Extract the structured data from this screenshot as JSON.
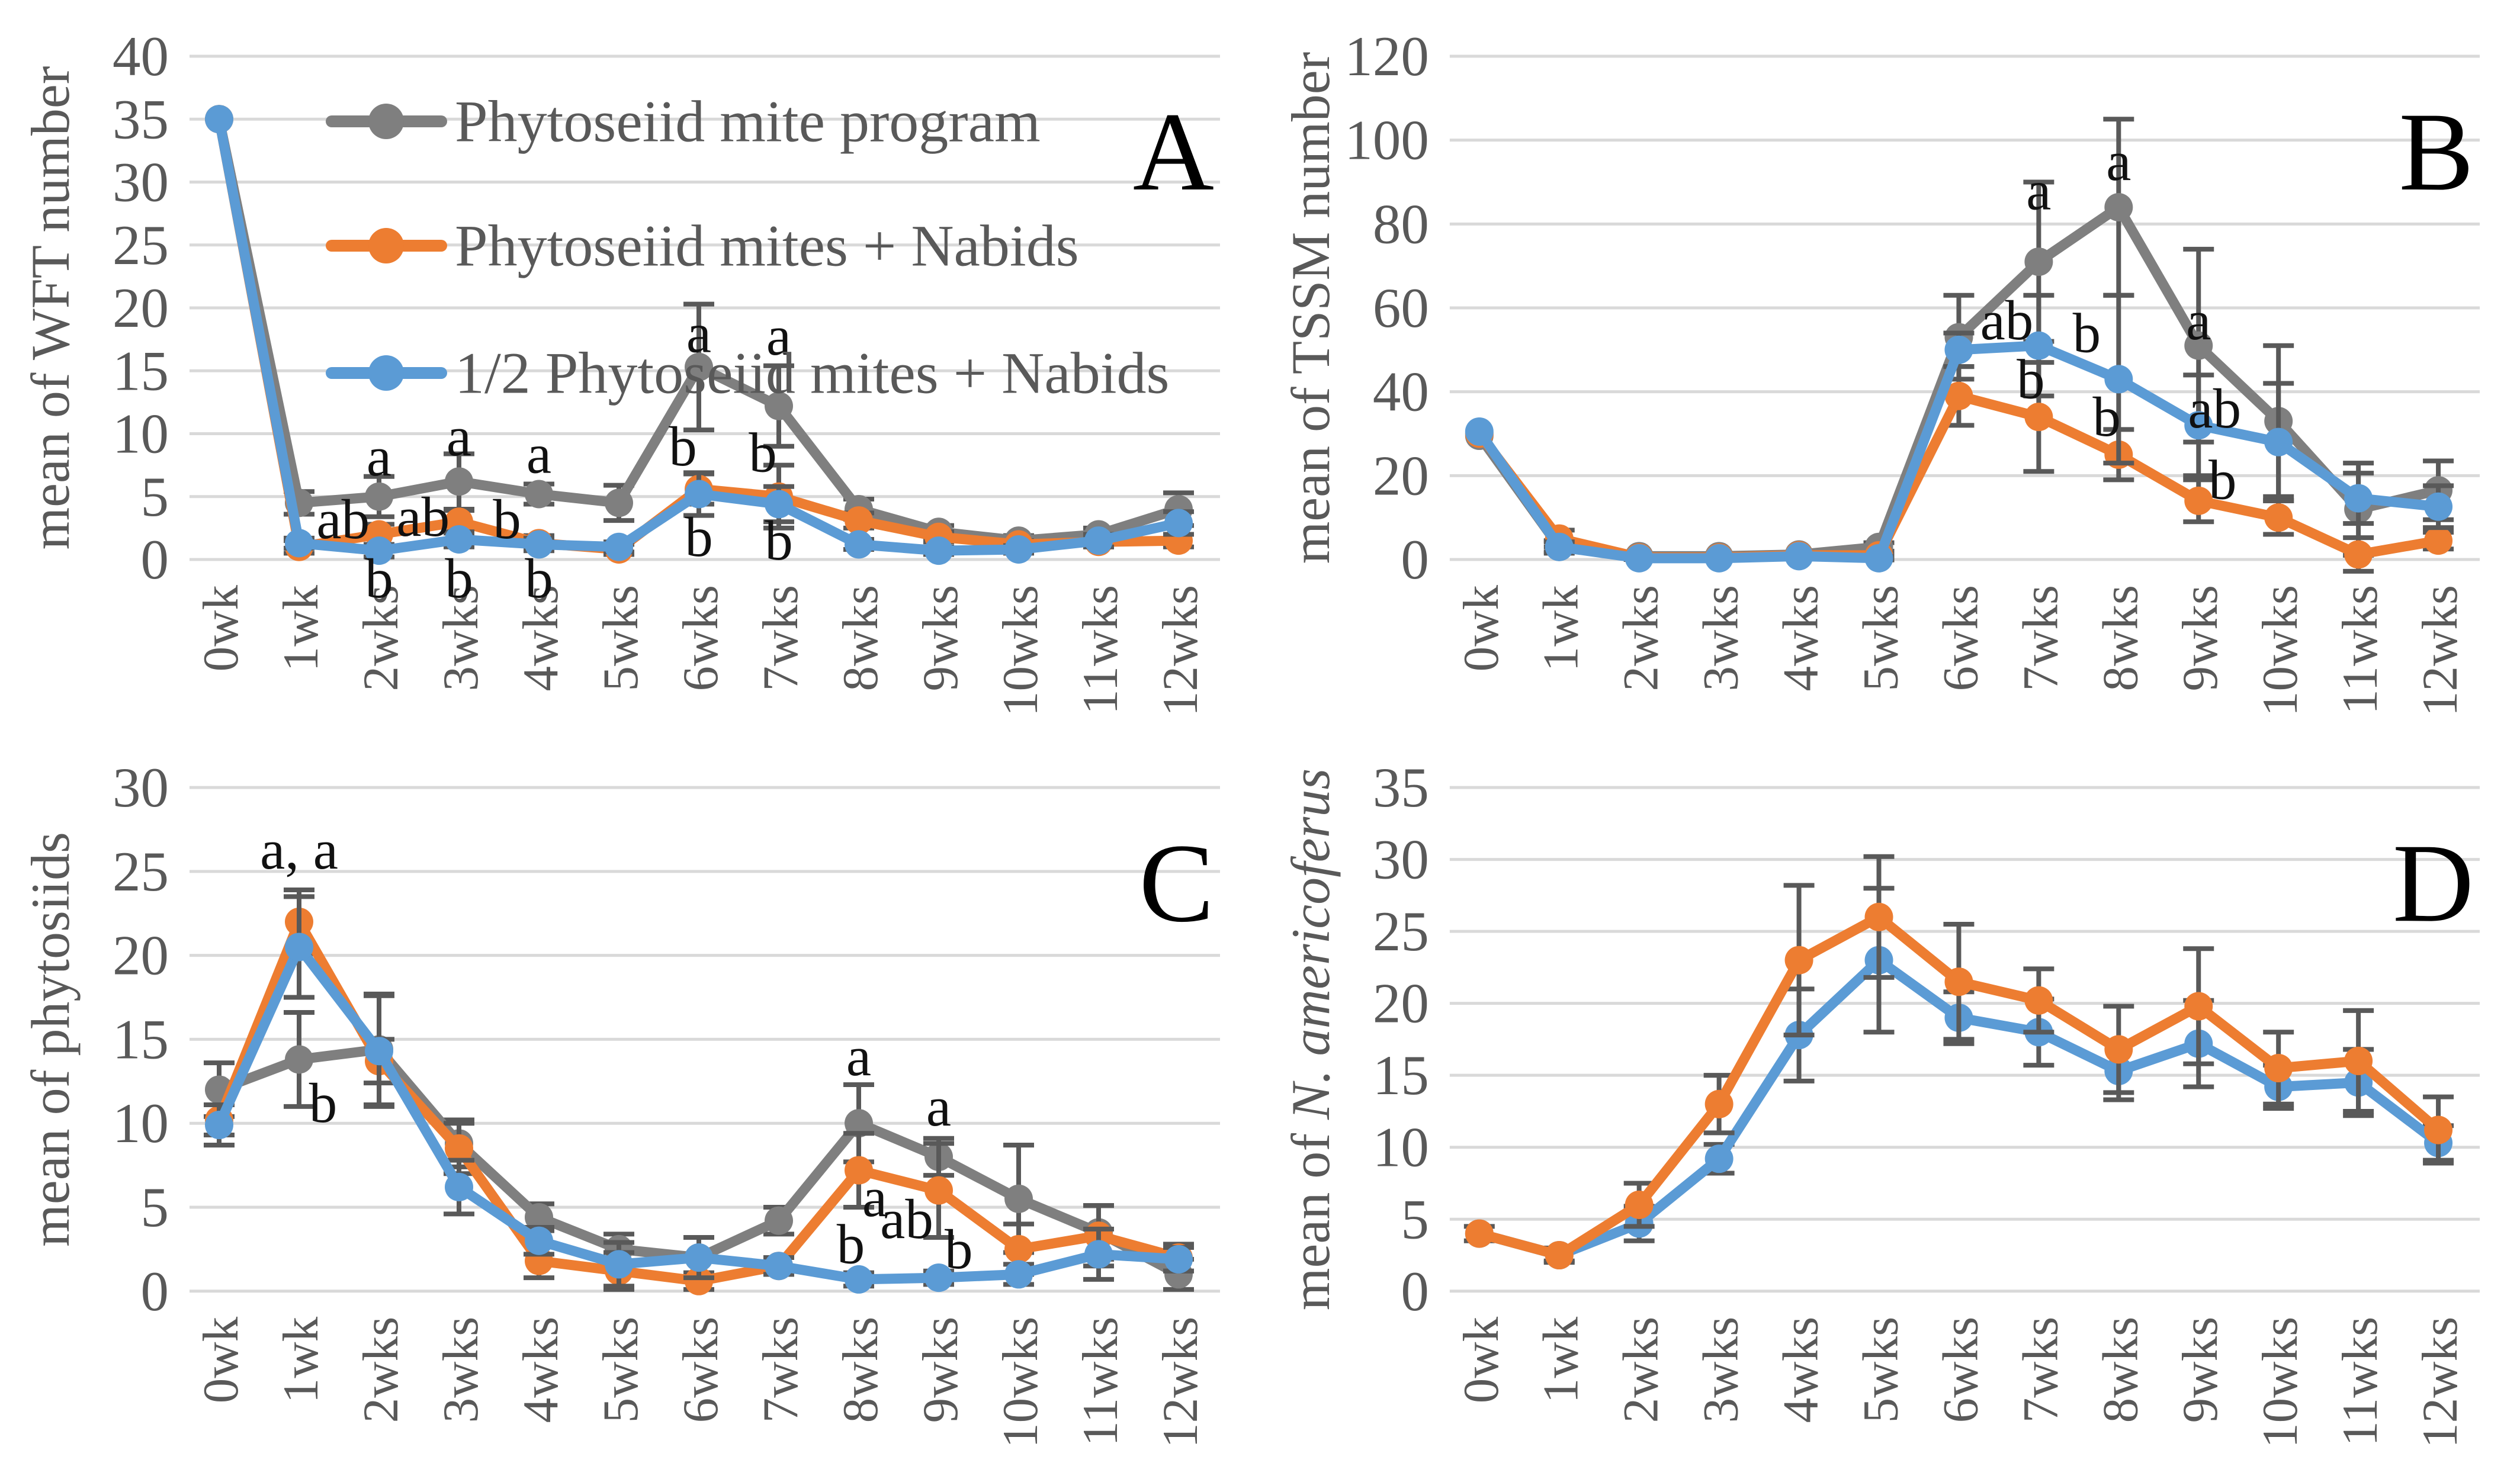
{
  "figure": {
    "background": "#ffffff",
    "legend": {
      "position": "top-left-panel-A",
      "items": [
        {
          "label": "Phytoseiid mite program",
          "color_key": "gray"
        },
        {
          "label": "Phytoseiid mites + Nabids",
          "color_key": "orange"
        },
        {
          "label": "1/2 Phytoseiid mites + Nabids",
          "color_key": "blue"
        }
      ]
    }
  },
  "colors": {
    "gray": "#7F7F7F",
    "orange": "#ED7D31",
    "blue": "#5B9BD5",
    "error_bar": "#595959",
    "gridline": "#D9D9D9",
    "tick_text": "#595959",
    "annotation_text": "#111111",
    "panel_letter": "#000000"
  },
  "chart_data": [
    {
      "type": "line",
      "panel_letter": "A",
      "ylabel_parts": [
        {
          "t": "mean of WFT number",
          "i": false
        }
      ],
      "ylim": [
        0,
        40
      ],
      "ystep": 5,
      "grid": true,
      "legend_visible": true,
      "categories": [
        "0wk",
        "1wk",
        "2wks",
        "3wks",
        "4wks",
        "5wks",
        "6wks",
        "7wks",
        "8wks",
        "9wks",
        "10wks",
        "11wks",
        "12wks"
      ],
      "series": [
        {
          "name": "Phytoseiid mite program",
          "color_key": "gray",
          "values": [
            35,
            4.5,
            5,
            6.2,
            5.2,
            4.5,
            15.3,
            12.2,
            4,
            2.2,
            1.5,
            2,
            4
          ],
          "err": [
            0,
            0.9,
            1.6,
            2.2,
            0.8,
            1.4,
            5,
            3.2,
            0.8,
            0.5,
            0.4,
            0.5,
            1.3
          ]
        },
        {
          "name": "Phytoseiid mites + Nabids",
          "color_key": "orange",
          "values": [
            35,
            1,
            2,
            3,
            1.3,
            0.8,
            5.6,
            5,
            3.1,
            1.8,
            1.2,
            1.4,
            1.5
          ],
          "err": [
            0,
            0.5,
            0.8,
            0.9,
            0.6,
            0.4,
            1.2,
            2.5,
            0.6,
            0.4,
            0.3,
            0.4,
            0.5
          ]
        },
        {
          "name": "1/2 Phytoseiid mites + Nabids",
          "color_key": "blue",
          "values": [
            35,
            1.3,
            0.7,
            1.6,
            1.2,
            1,
            5.2,
            4.4,
            1.2,
            0.7,
            0.8,
            1.5,
            2.9
          ],
          "err": [
            0,
            0.4,
            0.5,
            0.6,
            0.5,
            0.4,
            1.7,
            1.4,
            0.4,
            0.3,
            0.3,
            0.5,
            0.9
          ]
        }
      ],
      "annotations": [
        {
          "x": 1.55,
          "y": 3.2,
          "text": "ab"
        },
        {
          "x": 2,
          "y": 8.2,
          "text": "a"
        },
        {
          "x": 2,
          "y": -1.5,
          "text": "b"
        },
        {
          "x": 2.55,
          "y": 3.4,
          "text": "ab"
        },
        {
          "x": 3,
          "y": 9.8,
          "text": "a"
        },
        {
          "x": 3,
          "y": -1.5,
          "text": "b"
        },
        {
          "x": 3.6,
          "y": 3.2,
          "text": "b"
        },
        {
          "x": 4,
          "y": 8.4,
          "text": "a"
        },
        {
          "x": 4,
          "y": -1.5,
          "text": "b"
        },
        {
          "x": 5.8,
          "y": 9.0,
          "text": "b"
        },
        {
          "x": 6,
          "y": 18.0,
          "text": "a"
        },
        {
          "x": 6,
          "y": 1.8,
          "text": "b"
        },
        {
          "x": 6.8,
          "y": 8.5,
          "text": "b"
        },
        {
          "x": 7,
          "y": 17.8,
          "text": "a"
        },
        {
          "x": 7,
          "y": 1.5,
          "text": "b"
        }
      ]
    },
    {
      "type": "line",
      "panel_letter": "B",
      "ylabel_parts": [
        {
          "t": "mean of TSSM number",
          "i": false
        }
      ],
      "ylim": [
        0,
        120
      ],
      "ystep": 20,
      "grid": true,
      "legend_visible": false,
      "categories": [
        "0wk",
        "1wk",
        "2wks",
        "3wks",
        "4wks",
        "5wks",
        "6wks",
        "7wks",
        "8wks",
        "9wks",
        "10wks",
        "11wks",
        "12wks"
      ],
      "series": [
        {
          "name": "Phytoseiid mite program",
          "color_key": "gray",
          "values": [
            29.5,
            3,
            0.8,
            0.8,
            1.2,
            3,
            53,
            71,
            84,
            51,
            33,
            12,
            16.5
          ],
          "err": [
            0,
            1.5,
            0.3,
            0.3,
            0.4,
            1,
            10,
            19,
            21,
            23,
            18,
            11,
            7
          ]
        },
        {
          "name": "Phytoseiid mites + Nabids",
          "color_key": "orange",
          "values": [
            30,
            5,
            0.5,
            0.5,
            1,
            1,
            39,
            34,
            25,
            14,
            10,
            1.2,
            4.5
          ],
          "err": [
            0,
            2,
            0.3,
            0.3,
            0.4,
            0.4,
            7,
            13,
            6,
            5,
            4,
            4,
            2
          ]
        },
        {
          "name": "1/2 Phytoseiid mites + Nabids",
          "color_key": "blue",
          "values": [
            30.5,
            3,
            0.3,
            0.3,
            0.8,
            0.3,
            50,
            51,
            43,
            32,
            28,
            14.6,
            12.6
          ],
          "err": [
            0,
            1.2,
            0.3,
            0.3,
            0.4,
            0.4,
            4,
            12,
            20,
            12,
            14,
            6,
            5
          ]
        }
      ],
      "annotations": [
        {
          "x": 6.6,
          "y": 57,
          "text": "ab"
        },
        {
          "x": 6.9,
          "y": 43,
          "text": "b"
        },
        {
          "x": 7,
          "y": 88,
          "text": "a"
        },
        {
          "x": 7.6,
          "y": 54,
          "text": "b"
        },
        {
          "x": 7.85,
          "y": 34,
          "text": "b"
        },
        {
          "x": 8,
          "y": 95,
          "text": "a"
        },
        {
          "x": 9,
          "y": 57,
          "text": "a"
        },
        {
          "x": 9.2,
          "y": 36,
          "text": "ab"
        },
        {
          "x": 9.3,
          "y": 19,
          "text": "b"
        }
      ]
    },
    {
      "type": "line",
      "panel_letter": "C",
      "ylabel_parts": [
        {
          "t": "mean of phytosiids",
          "i": false
        }
      ],
      "ylim": [
        0,
        30
      ],
      "ystep": 5,
      "grid": true,
      "legend_visible": false,
      "categories": [
        "0wk",
        "1wk",
        "2wks",
        "3wks",
        "4wks",
        "5wks",
        "6wks",
        "7wks",
        "8wks",
        "9wks",
        "10wks",
        "11wks",
        "12wks"
      ],
      "series": [
        {
          "name": "Phytoseiid mite program",
          "color_key": "gray",
          "values": [
            12,
            13.8,
            14.4,
            8.8,
            4.4,
            2.5,
            2,
            4.2,
            10,
            8,
            5.5,
            3.5,
            1
          ],
          "err": [
            1.6,
            2.8,
            3.3,
            1.4,
            0.8,
            0.9,
            1.2,
            0.8,
            2.3,
            1.1,
            3.2,
            1.6,
            0.9
          ]
        },
        {
          "name": "Phytoseiid mites + Nabids",
          "color_key": "orange",
          "values": [
            10.2,
            22,
            13.7,
            8.5,
            1.8,
            1.2,
            0.6,
            1.5,
            7.2,
            6,
            2.5,
            3.3,
            2
          ],
          "err": [
            0.9,
            1.9,
            1.3,
            1.5,
            1,
            1.1,
            0.5,
            0.5,
            2.2,
            2.8,
            1.5,
            1.8,
            0.8
          ]
        },
        {
          "name": "1/2 Phytoseiid mites + Nabids",
          "color_key": "blue",
          "values": [
            9.9,
            20.5,
            14.3,
            6.2,
            3,
            1.6,
            2,
            1.5,
            0.7,
            0.8,
            1,
            2.2,
            1.9
          ],
          "err": [
            1.2,
            3,
            3.3,
            1.6,
            0.8,
            1.3,
            1.2,
            0.5,
            0.4,
            0.4,
            0.6,
            1.5,
            0.7
          ]
        }
      ],
      "annotations": [
        {
          "x": 1,
          "y": 26.3,
          "text": "a, a"
        },
        {
          "x": 1.3,
          "y": 11.2,
          "text": "b"
        },
        {
          "x": 8,
          "y": 14,
          "text": "a"
        },
        {
          "x": 8.2,
          "y": 5.6,
          "text": "a"
        },
        {
          "x": 7.9,
          "y": 2.8,
          "text": "b"
        },
        {
          "x": 9,
          "y": 11,
          "text": "a"
        },
        {
          "x": 8.6,
          "y": 4.3,
          "text": "ab"
        },
        {
          "x": 9.25,
          "y": 2.5,
          "text": "b"
        }
      ]
    },
    {
      "type": "line",
      "panel_letter": "D",
      "ylabel_parts": [
        {
          "t": "mean of ",
          "i": false
        },
        {
          "t": "N. americoferus",
          "i": true
        }
      ],
      "ylim": [
        0,
        35
      ],
      "ystep": 5,
      "grid": true,
      "legend_visible": false,
      "categories": [
        "0wk",
        "1wk",
        "2wks",
        "3wks",
        "4wks",
        "5wks",
        "6wks",
        "7wks",
        "8wks",
        "9wks",
        "10wks",
        "11wks",
        "12wks"
      ],
      "series": [
        {
          "name": "1/2 Phytoseiid mites + Nabids",
          "color_key": "blue",
          "values": [
            4,
            2.5,
            4.7,
            9.2,
            17.8,
            23,
            19,
            18,
            15.3,
            17.2,
            14.2,
            14.5,
            10.3
          ],
          "err": [
            0,
            0.4,
            1.2,
            1,
            3.2,
            5,
            1.8,
            2.3,
            2,
            3,
            1.5,
            2.3,
            1.2
          ]
        },
        {
          "name": "Phytoseiid mites + Nabids",
          "color_key": "orange",
          "values": [
            4,
            2.5,
            6,
            13,
            23,
            26,
            21.5,
            20.2,
            16.8,
            19.8,
            15.5,
            16,
            11.2
          ],
          "err": [
            0.5,
            0.5,
            1.5,
            2,
            5.2,
            4.2,
            4,
            2.2,
            3,
            4,
            2.5,
            3.5,
            2.3
          ]
        }
      ],
      "annotations": []
    }
  ]
}
